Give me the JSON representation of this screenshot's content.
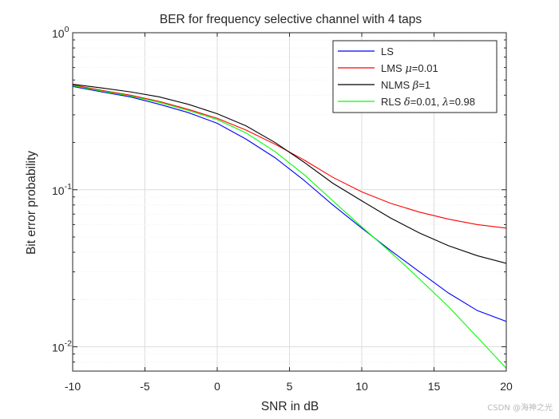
{
  "chart_data": {
    "type": "line",
    "title": "BER for frequency selective channel with 4 taps",
    "xlabel": "SNR in dB",
    "ylabel": "Bit error probability",
    "x_scale": "linear",
    "y_scale": "log",
    "xlim": [
      -10,
      20
    ],
    "ylim": [
      0.007,
      1
    ],
    "grid": true,
    "legend_position": "top-right",
    "x_ticks": [
      -10,
      -5,
      0,
      5,
      10,
      15,
      20
    ],
    "x_tick_labels": [
      "-10",
      "-5",
      "0",
      "5",
      "10",
      "15",
      "20"
    ],
    "y_ticks": [
      {
        "value": 1,
        "base": "10",
        "exp": "0"
      },
      {
        "value": 0.1,
        "base": "10",
        "exp": "-1"
      },
      {
        "value": 0.01,
        "base": "10",
        "exp": "-2"
      }
    ],
    "x": [
      -10,
      -8,
      -6,
      -4,
      -2,
      0,
      2,
      4,
      6,
      8,
      10,
      12,
      14,
      16,
      18,
      20
    ],
    "series": [
      {
        "name": "LS",
        "legend_parts": [
          {
            "text": "LS",
            "style": "normal"
          }
        ],
        "color": "#0000ff",
        "values": [
          0.455,
          0.42,
          0.39,
          0.35,
          0.31,
          0.265,
          0.21,
          0.16,
          0.115,
          0.08,
          0.057,
          0.041,
          0.03,
          0.022,
          0.017,
          0.0145
        ]
      },
      {
        "name": "LMS μ=0.01",
        "legend_parts": [
          {
            "text": "LMS ",
            "style": "normal"
          },
          {
            "text": "μ",
            "style": "greek"
          },
          {
            "text": "=0.01",
            "style": "normal"
          }
        ],
        "color": "#ff0000",
        "values": [
          0.465,
          0.43,
          0.4,
          0.365,
          0.325,
          0.285,
          0.24,
          0.195,
          0.155,
          0.12,
          0.097,
          0.082,
          0.072,
          0.065,
          0.06,
          0.057
        ]
      },
      {
        "name": "NLMS β=1",
        "legend_parts": [
          {
            "text": "NLMS ",
            "style": "normal"
          },
          {
            "text": "β",
            "style": "greek"
          },
          {
            "text": "=1",
            "style": "normal"
          }
        ],
        "color": "#000000",
        "values": [
          0.47,
          0.445,
          0.42,
          0.39,
          0.35,
          0.305,
          0.255,
          0.2,
          0.15,
          0.11,
          0.085,
          0.066,
          0.053,
          0.044,
          0.038,
          0.034
        ]
      },
      {
        "name": "RLS δ=0.01, λ=0.98",
        "legend_parts": [
          {
            "text": "RLS  ",
            "style": "normal"
          },
          {
            "text": "δ",
            "style": "greek"
          },
          {
            "text": "=0.01, ",
            "style": "normal"
          },
          {
            "text": "λ",
            "style": "greek"
          },
          {
            "text": "=0.98",
            "style": "normal"
          }
        ],
        "color": "#00ff00",
        "values": [
          0.46,
          0.425,
          0.395,
          0.36,
          0.32,
          0.28,
          0.23,
          0.175,
          0.125,
          0.085,
          0.058,
          0.04,
          0.027,
          0.018,
          0.0115,
          0.0073
        ]
      }
    ]
  },
  "watermark": "CSDN @海神之光"
}
